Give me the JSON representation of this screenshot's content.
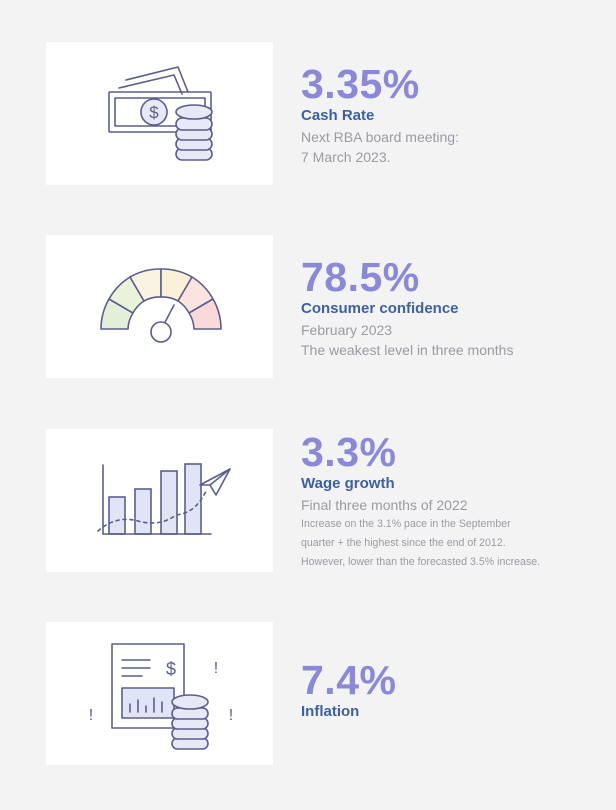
{
  "colors": {
    "accent": "#8a88d8",
    "label": "#3e5fa0",
    "muted": "#9a9ba3",
    "card": "#ffffff",
    "background": "#f3f3f4",
    "icon_stroke": "#5a5f8a"
  },
  "stats": [
    {
      "icon": "money-coins-icon",
      "value": "3.35%",
      "label": "Cash Rate",
      "description": [
        "Next RBA board meeting:",
        "7 March 2023."
      ],
      "notes": []
    },
    {
      "icon": "gauge-meter-icon",
      "value": "78.5%",
      "label": "Consumer confidence",
      "description": [
        "February 2023",
        "The weakest level in three months"
      ],
      "notes": []
    },
    {
      "icon": "bar-chart-growth-icon",
      "value": "3.3%",
      "label": "Wage growth",
      "description": [
        "Final three months of 2022"
      ],
      "notes": [
        "Increase on the 3.1% pace in the September",
        "quarter + the highest since the end of 2012.",
        "However, lower than the forecasted 3.5% increase."
      ]
    },
    {
      "icon": "report-coins-icon",
      "value": "7.4%",
      "label": "Inflation",
      "description": [],
      "notes": []
    }
  ],
  "icon_glyphs": {
    "dollar": "$",
    "exclamation": "!"
  }
}
